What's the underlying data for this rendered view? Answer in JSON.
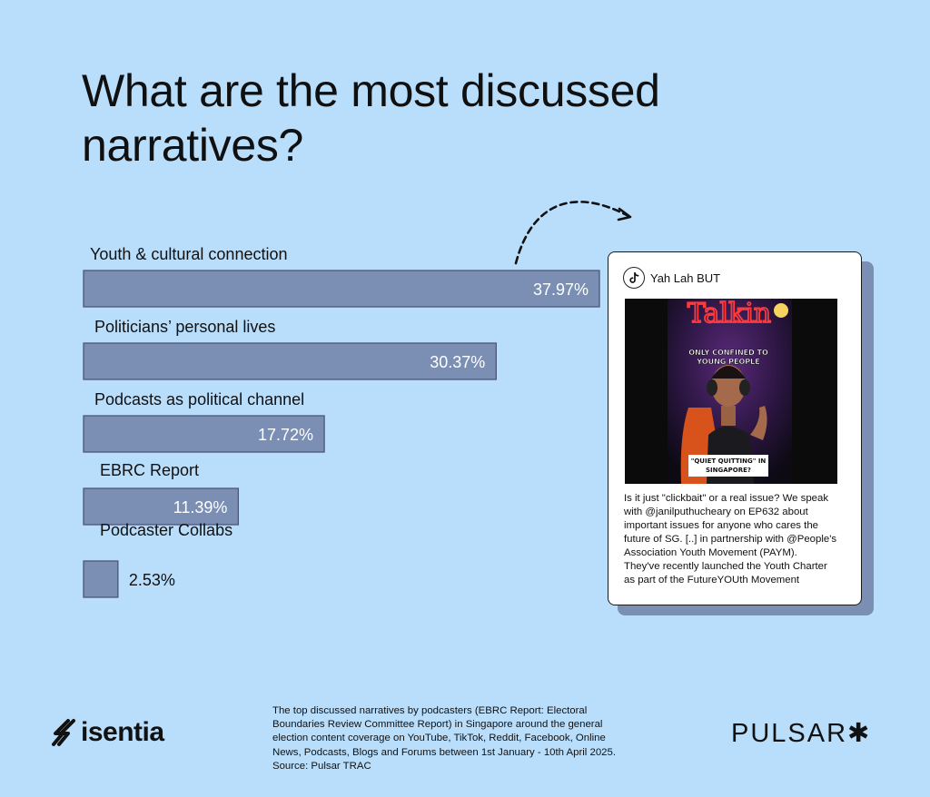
{
  "title": "What are the most discussed narratives?",
  "chart_data": {
    "type": "bar",
    "orientation": "horizontal",
    "categories": [
      "Youth & cultural connection",
      "Politicians’ personal lives",
      "Podcasts as political channel",
      "EBRC Report",
      "Podcaster Collabs"
    ],
    "values": [
      37.97,
      30.37,
      17.72,
      11.39,
      2.53
    ],
    "value_labels": [
      "37.97%",
      "30.37%",
      "17.72%",
      "11.39%",
      "2.53%"
    ],
    "unit": "%",
    "bar_color": "#7b8fb5",
    "xlim": [
      0,
      37.97
    ]
  },
  "card": {
    "account": "Yah Lah BUT",
    "platform_icon": "tiktok-icon",
    "video_overlay_top": "ONLY CONFINED TO YOUNG PEOPLE",
    "video_overlay_bottom": "\"QUIET QUITTING\" IN SINGAPORE?",
    "text_lines": [
      "Is it just \"clickbait\" or a real issue? We speak",
      "with @janilputhucheary on EP632 about",
      "important issues for anyone who cares the",
      "future of SG. [..] in partnership with @People's",
      "Association Youth Movement (PAYM).",
      "They've recently launched the Youth Charter",
      "as part of the FutureYOUth Movement"
    ]
  },
  "footer": {
    "logo_left": "isentia",
    "logo_right": "PULSAR✱",
    "source_lines": [
      "The top discussed narratives by podcasters (EBRC Report: Electoral",
      "Boundaries Review Committee Report) in Singapore around the general",
      "election content coverage on YouTube, TikTok, Reddit, Facebook, Online",
      "News, Podcasts, Blogs and Forums between 1st January - 10th April 2025.",
      "Source: Pulsar TRAC"
    ]
  }
}
